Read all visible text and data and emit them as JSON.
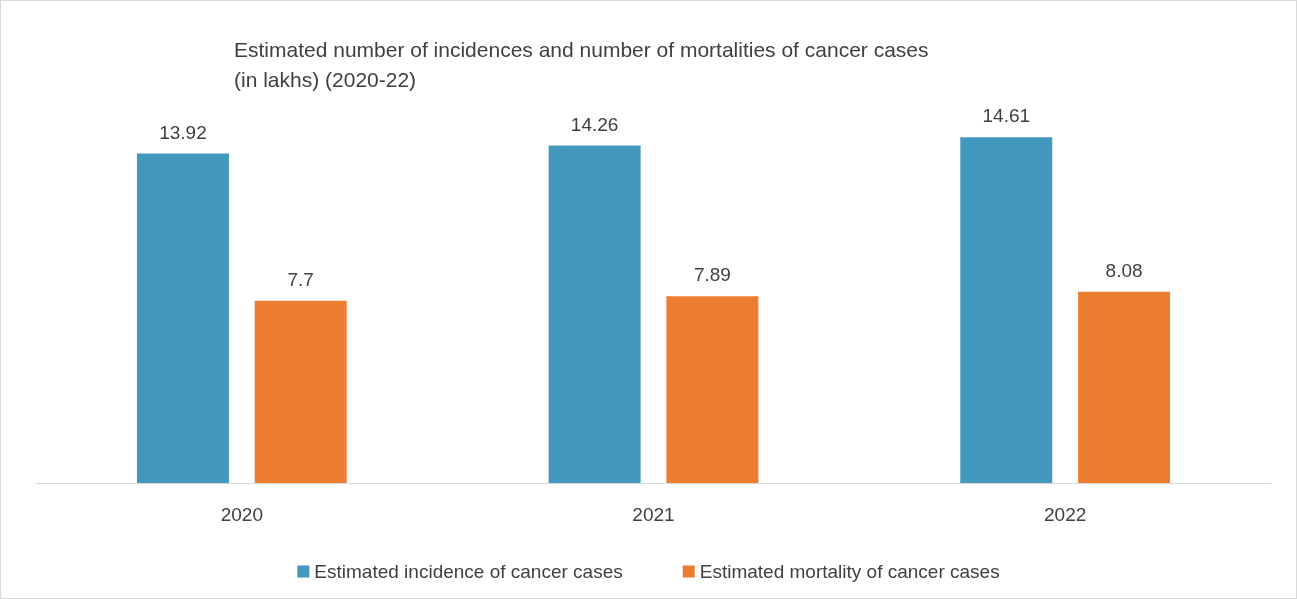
{
  "chart_data": {
    "type": "bar",
    "title": "Estimated number of incidences and number of mortalities of cancer cases\n(in lakhs) (2020-22)",
    "categories": [
      "2020",
      "2021",
      "2022"
    ],
    "series": [
      {
        "name": "Estimated incidence of cancer cases",
        "color": "#4299bd",
        "values": [
          13.92,
          14.26,
          14.61
        ]
      },
      {
        "name": "Estimated mortality of cancer cases",
        "color": "#ed7d31",
        "values": [
          7.7,
          7.89,
          8.08
        ]
      }
    ],
    "data_labels": true,
    "legend": "bottom"
  }
}
